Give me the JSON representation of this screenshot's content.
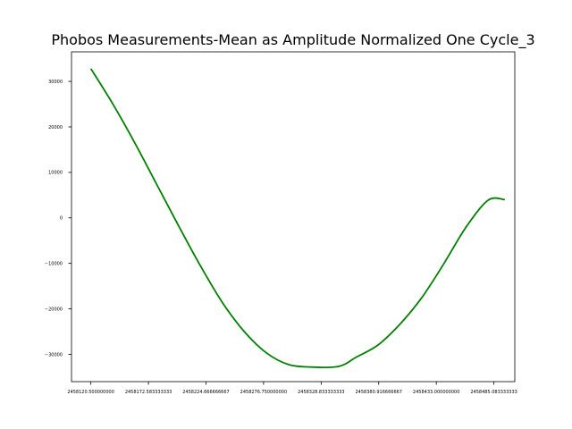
{
  "chart_data": {
    "type": "line",
    "title": "Phobos Measurements-Mean as Amplitude Normalized One Cycle_3",
    "xlabel": "",
    "ylabel": "",
    "xlim": [
      2458103.0,
      2458504.0
    ],
    "ylim": [
      -36000,
      36500
    ],
    "grid": false,
    "line_color": "#008000",
    "x_ticks": [
      2458120.5,
      2458172.583333333,
      2458224.666666667,
      2458276.75,
      2458328.833333333,
      2458380.916666667,
      2458433.0,
      2458485.083333333
    ],
    "x_tick_labels": [
      "2458120.500000000",
      "2458172.583333333",
      "2458224.666666667",
      "2458276.750000000",
      "2458328.833333333",
      "2458380.916666667",
      "2458433.000000000",
      "2458485.083333333"
    ],
    "y_ticks": [
      30000,
      20000,
      10000,
      0,
      -10000,
      -20000,
      -30000
    ],
    "y_tick_labels": [
      "30000",
      "20000",
      "10000",
      "0",
      "−10000",
      "−20000",
      "−30000"
    ],
    "series": [
      {
        "x": [
          2458120.5,
          2458140.0,
          2458160.0,
          2458180.0,
          2458200.0,
          2458220.0,
          2458240.0,
          2458260.0,
          2458280.0,
          2458300.0,
          2458320.0,
          2458340.0,
          2458350.0,
          2458360.0,
          2458380.0,
          2458400.0,
          2458420.0,
          2458440.0,
          2458460.0,
          2458480.0,
          2458495.0
        ],
        "values": [
          32800,
          25200,
          16600,
          7400,
          -1800,
          -10700,
          -18800,
          -25200,
          -29800,
          -32300,
          -32800,
          -32800,
          -32200,
          -30700,
          -28000,
          -23400,
          -17500,
          -10000,
          -2000,
          3900,
          4000
        ]
      }
    ]
  }
}
